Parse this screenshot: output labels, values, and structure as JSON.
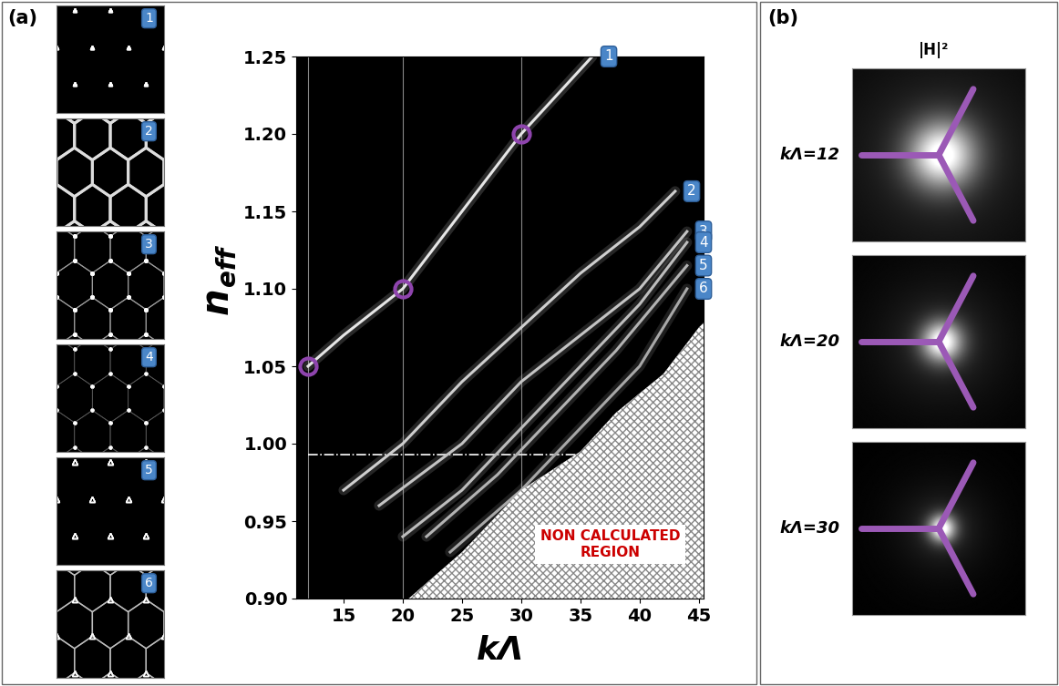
{
  "chart_data": {
    "type": "line",
    "panel_labels": [
      "(a)",
      "(b)"
    ],
    "xlabel": "kΛ",
    "ylabel": {
      "main": "n",
      "sub": "eff"
    },
    "xlim": [
      11,
      45.4
    ],
    "xticks": [
      15,
      20,
      25,
      30,
      35,
      40,
      45
    ],
    "ylim": [
      0.9,
      1.25
    ],
    "yticks": [
      {
        "value": 0.9,
        "label": "0.90"
      },
      0.95,
      {
        "value": 1.0,
        "label": "1.00"
      },
      1.05,
      {
        "value": 1.1,
        "label": "1.10"
      },
      1.15,
      {
        "value": 1.2,
        "label": "1.20"
      },
      1.25
    ],
    "grid": false,
    "series": [
      {
        "name": "1",
        "color": "#e6e6e6",
        "x": [
          12,
          15,
          20,
          25,
          30,
          33,
          36
        ],
        "values": [
          1.05,
          1.07,
          1.1,
          1.15,
          1.2,
          1.225,
          1.25
        ]
      },
      {
        "name": "2",
        "color": "#cfcfcf",
        "x": [
          15,
          20,
          25,
          30,
          35,
          40,
          43
        ],
        "values": [
          0.97,
          1.0,
          1.04,
          1.075,
          1.11,
          1.14,
          1.163
        ]
      },
      {
        "name": "3",
        "color": "#c4c4c4",
        "x": [
          18,
          25,
          30,
          35,
          40,
          44
        ],
        "values": [
          0.96,
          1.0,
          1.04,
          1.07,
          1.1,
          1.137
        ]
      },
      {
        "name": "4",
        "color": "#bdbdbd",
        "x": [
          20,
          25,
          30,
          35,
          40,
          44
        ],
        "values": [
          0.94,
          0.97,
          1.01,
          1.05,
          1.09,
          1.13
        ]
      },
      {
        "name": "5",
        "color": "#b3b3b3",
        "x": [
          22,
          28,
          33,
          38,
          44
        ],
        "values": [
          0.94,
          0.98,
          1.02,
          1.06,
          1.115
        ]
      },
      {
        "name": "6",
        "color": "#a8a8a8",
        "x": [
          24,
          30,
          35,
          40,
          44
        ],
        "values": [
          0.93,
          0.97,
          1.01,
          1.05,
          1.1
        ]
      }
    ],
    "highlighted_points": {
      "x": [
        12,
        20,
        30
      ],
      "values": [
        1.05,
        1.1,
        1.2
      ],
      "color": "#8e44ad"
    },
    "vertical_lines": [
      12,
      20,
      30
    ],
    "reference_line": {
      "x": [
        12,
        35
      ],
      "value": 0.993
    },
    "non_calculated_region": {
      "label": "NON CALCULATED\nREGION",
      "label_x": 37.5,
      "label_y": 0.935,
      "x": [
        20.5,
        25,
        30,
        32,
        35,
        38,
        42,
        45,
        45.4
      ],
      "values": [
        0.9,
        0.93,
        0.97,
        0.98,
        0.995,
        1.02,
        1.045,
        1.075,
        1.078
      ]
    },
    "field_maps": {
      "title": "|H|²",
      "tick_labels": false,
      "panels": [
        {
          "label": "kΛ=12",
          "k_lambda": 12
        },
        {
          "label": "kΛ=20",
          "k_lambda": 20
        },
        {
          "label": "kΛ=30",
          "k_lambda": 30
        }
      ]
    }
  }
}
